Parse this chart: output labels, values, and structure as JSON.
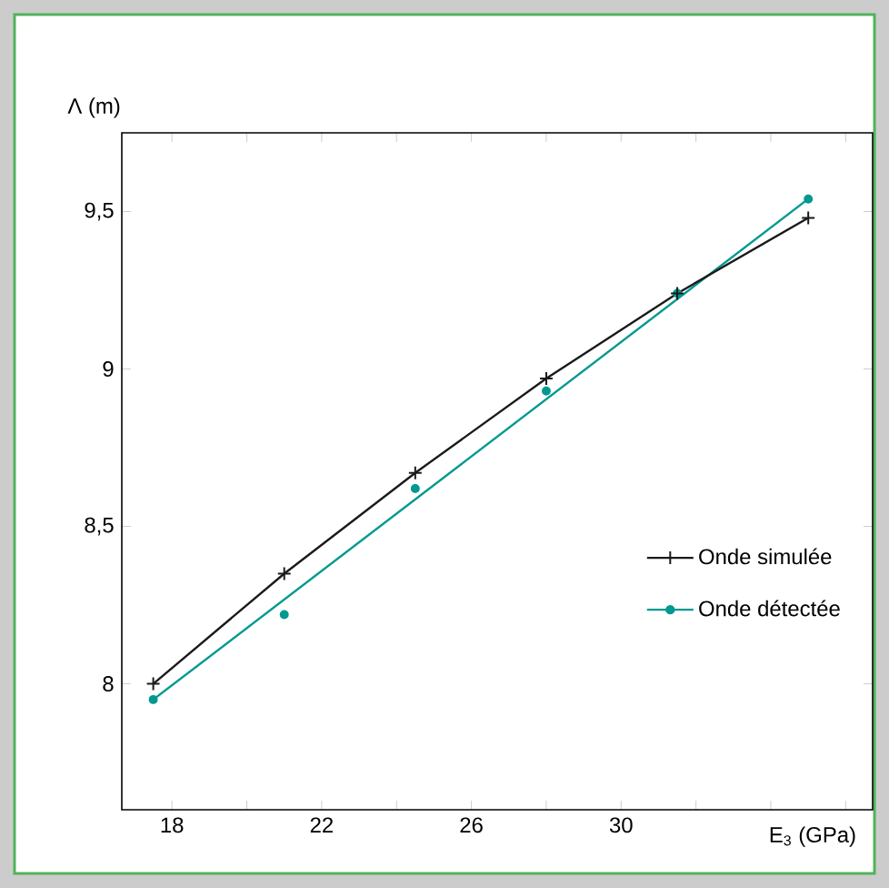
{
  "chart_data": {
    "type": "line",
    "xlabel": "E$_{3}$ (GPa)",
    "ylabel": "Λ (m)",
    "xlim": [
      16.66,
      36.72
    ],
    "ylim": [
      7.6,
      9.75
    ],
    "xticks": [
      18,
      {
        "value": 20,
        "label": null
      },
      22,
      {
        "value": 24,
        "label": null
      },
      26,
      {
        "value": 28,
        "label": null
      },
      30,
      {
        "value": 32,
        "label": null
      },
      {
        "value": 34,
        "label": null
      },
      {
        "value": 36,
        "label": null
      }
    ],
    "yticks": [
      8,
      {
        "value": 8.5,
        "label": "8,5"
      },
      9,
      {
        "value": 9.5,
        "label": "9,5"
      }
    ],
    "grid": false,
    "legend": "right",
    "line_style": "solid",
    "series": [
      {
        "name": "Onde simulée",
        "marker": "cross",
        "color": "#1a1a1a",
        "x": [
          17.5,
          21,
          24.5,
          28,
          31.5,
          35
        ],
        "values": [
          8.0,
          8.35,
          8.67,
          8.97,
          9.24,
          9.48
        ]
      },
      {
        "name": "Onde détectée",
        "type": "scatter",
        "marker": "circle",
        "color": "#009990",
        "x": [
          17.5,
          21,
          24.5,
          28,
          31.5,
          35
        ],
        "values": [
          7.95,
          8.22,
          8.62,
          8.93,
          9.24,
          9.54
        ]
      },
      {
        "marker": "none",
        "color": "#009990",
        "x": [
          17.5,
          35
        ],
        "values": [
          7.95,
          9.54
        ]
      }
    ]
  }
}
